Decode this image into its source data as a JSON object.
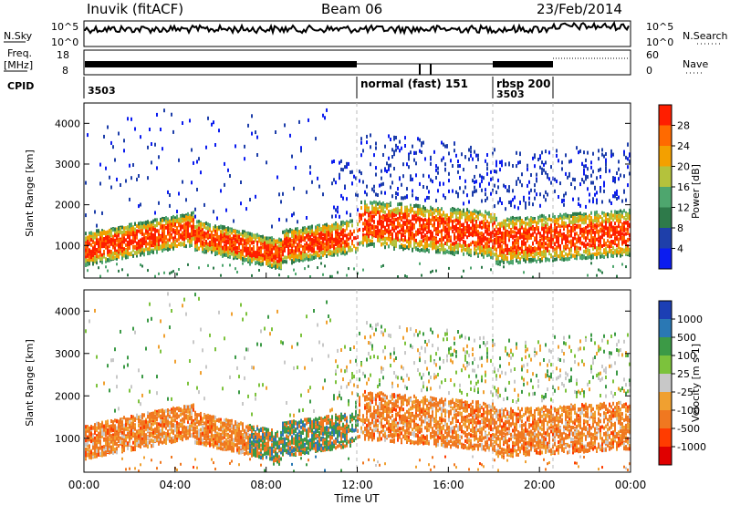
{
  "header": {
    "title": "Inuvik (fitACF)",
    "beam": "Beam 06",
    "date": "23/Feb/2014"
  },
  "summary": {
    "nsky_label": "N.Sky",
    "nsearch_label": "N.Search",
    "nsky_tick_top": "10^5",
    "nsky_tick_bottom": "10^0",
    "nsearch_tick_top": "10^5",
    "nsearch_tick_bottom": "10^0",
    "freq_label_1": "Freq.",
    "freq_label_2": "[MHz]",
    "freq_ticks": [
      "18",
      "8"
    ],
    "nave_label": "Nave",
    "nave_ticks": [
      "60",
      "0"
    ],
    "cpid_label": "CPID",
    "cpid_segments": [
      {
        "text": "3503"
      },
      {
        "text": "normal (fast)  151"
      },
      {
        "text": "rbsp  200"
      },
      {
        "text": "3503"
      }
    ]
  },
  "chart_data": [
    {
      "type": "heatmap",
      "name": "power",
      "ylabel": "Slant Range [km]",
      "y_ticks": [
        "1000",
        "2000",
        "3000",
        "4000"
      ],
      "yrange": [
        200,
        4500
      ],
      "colorbar_label": "Power [dB]",
      "colorbar_ticks": [
        "4",
        "8",
        "12",
        "16",
        "20",
        "24",
        "28"
      ],
      "colors": [
        "#0b1cf0",
        "#1e3faa",
        "#2e7a4a",
        "#4ea66e",
        "#b4c23c",
        "#f3a000",
        "#ff6a00",
        "#ff1e00"
      ]
    },
    {
      "type": "heatmap",
      "name": "velocity",
      "ylabel": "Slant Range [km]",
      "y_ticks": [
        "1000",
        "2000",
        "3000",
        "4000"
      ],
      "yrange": [
        200,
        4500
      ],
      "colorbar_label": "Velocity [m s-1]",
      "colorbar_ticks": [
        "1000",
        "500",
        "100",
        "25",
        "-25",
        "-100",
        "-500",
        "-1000"
      ],
      "colors": [
        "#1c3fb4",
        "#2a78b4",
        "#3c9a46",
        "#7cc23c",
        "#c8c8c8",
        "#f0a030",
        "#f07820",
        "#ff3c00",
        "#e00000"
      ]
    }
  ],
  "xaxis": {
    "label": "Time UT",
    "ticks": [
      "00:00",
      "04:00",
      "08:00",
      "12:00",
      "16:00",
      "20:00",
      "00:00"
    ]
  }
}
